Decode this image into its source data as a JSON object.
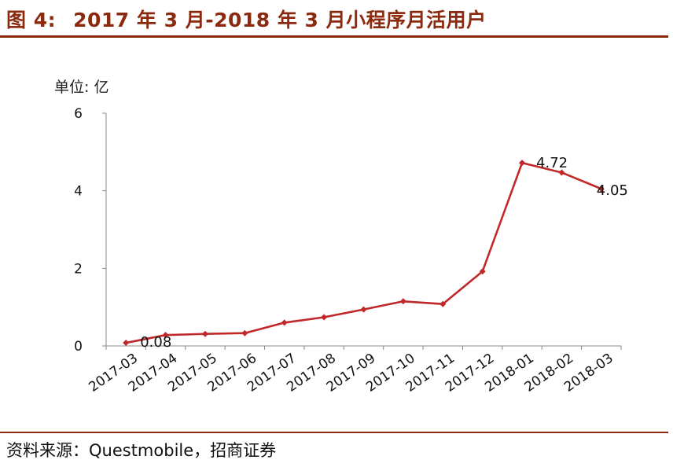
{
  "figure": {
    "prefix": "图 4:",
    "title": "2017 年 3 月-2018 年 3 月小程序月活用户",
    "source": "资料来源：Questmobile，招商证券"
  },
  "chart_data": {
    "type": "line",
    "ylabel": "单位: 亿",
    "xlabel": "",
    "categories": [
      "2017-03",
      "2017-04",
      "2017-05",
      "2017-06",
      "2017-07",
      "2017-08",
      "2017-09",
      "2017-10",
      "2017-11",
      "2017-12",
      "2018-01",
      "2018-02",
      "2018-03"
    ],
    "series": [
      {
        "values": [
          0.08,
          0.28,
          0.31,
          0.33,
          0.6,
          0.74,
          0.94,
          1.15,
          1.08,
          1.92,
          4.72,
          4.47,
          4.05
        ]
      }
    ],
    "data_labels": [
      {
        "index": 0,
        "text": "0.08"
      },
      {
        "index": 10,
        "text": "4.72"
      },
      {
        "index": 12,
        "text": "4.05"
      }
    ],
    "y_ticks": [
      "0",
      "2",
      "4",
      "6"
    ],
    "ylim": [
      0,
      6
    ],
    "grid": false,
    "legend": "none",
    "line_color": "#c0282a",
    "axis_color": "#888888"
  }
}
